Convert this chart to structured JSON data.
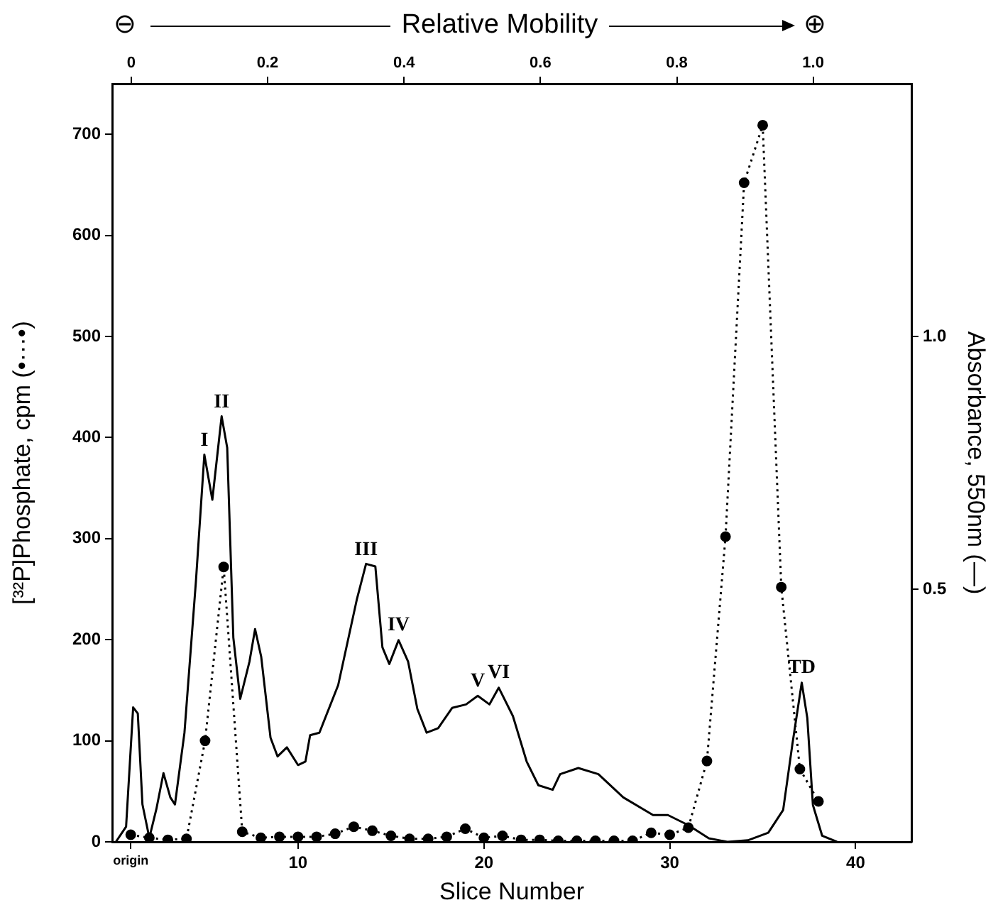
{
  "chart_data": {
    "type": "line",
    "xlabel": "Slice Number",
    "ylabel": "[³²P]Phosphate, cpm (•···•)",
    "y2label": "Absorbance, 550nm (—)",
    "x2label": "Relative Mobility",
    "xlim": [
      0,
      43
    ],
    "xticks": [
      {
        "value": 1,
        "label": "origin"
      },
      10,
      20,
      30,
      40
    ],
    "x2lim": [
      -0.028,
      1.144
    ],
    "x2ticks": [
      0,
      0.2,
      0.4,
      0.6,
      0.8,
      {
        "value": 1,
        "label": "1.0"
      }
    ],
    "ylim": [
      0,
      750
    ],
    "yticks": [
      0,
      100,
      200,
      300,
      400,
      500,
      600,
      700
    ],
    "y2lim": [
      0,
      1.5
    ],
    "y2ticks": [
      0.5,
      {
        "value": 1,
        "label": "1.0"
      }
    ],
    "grid": false,
    "legend": false,
    "series": [
      {
        "color": "#000000",
        "marker": "circle",
        "line_style": "dotted",
        "x": [
          1,
          2,
          3,
          4,
          5,
          6,
          7,
          8,
          9,
          10,
          11,
          12,
          13,
          14,
          15,
          16,
          17,
          18,
          19,
          20,
          21,
          22,
          23,
          24,
          25,
          26,
          27,
          28,
          29,
          30,
          31,
          32,
          33,
          34,
          35,
          36,
          37,
          38
        ],
        "values": [
          7,
          4,
          2,
          3,
          100,
          272,
          10,
          4,
          5,
          5,
          5,
          8,
          15,
          11,
          6,
          3,
          3,
          5,
          13,
          4,
          6,
          2,
          2,
          1,
          1,
          1,
          1,
          1,
          9,
          7,
          14,
          80,
          302,
          652,
          709,
          252,
          72,
          40
        ]
      },
      {
        "axis": "y2",
        "color": "#000000",
        "marker": "none",
        "line_style": "solid",
        "x": [
          0.2,
          0.75,
          1.13,
          1.38,
          1.63,
          2.0,
          2.38,
          2.76,
          3.13,
          3.38,
          3.89,
          4.51,
          4.96,
          5.39,
          5.89,
          6.19,
          6.52,
          6.89,
          7.39,
          7.69,
          8.02,
          8.52,
          8.9,
          9.4,
          10.0,
          10.4,
          10.65,
          11.15,
          12.16,
          13.16,
          13.66,
          14.16,
          14.54,
          14.91,
          15.41,
          15.92,
          16.42,
          16.92,
          17.54,
          18.29,
          19.04,
          19.67,
          20.3,
          20.8,
          21.56,
          22.3,
          22.93,
          23.7,
          24.1,
          25.08,
          26.16,
          27.5,
          29.1,
          29.9,
          31.0,
          32.1,
          33.1,
          34.2,
          35.3,
          36.1,
          36.6,
          37.1,
          37.4,
          37.7,
          38.2,
          39.0
        ],
        "values": [
          0,
          0.03,
          0.266,
          0.254,
          0.074,
          0.008,
          0.065,
          0.136,
          0.088,
          0.074,
          0.216,
          0.517,
          0.766,
          0.677,
          0.842,
          0.78,
          0.404,
          0.283,
          0.357,
          0.421,
          0.366,
          0.206,
          0.169,
          0.187,
          0.152,
          0.159,
          0.211,
          0.216,
          0.31,
          0.479,
          0.55,
          0.545,
          0.385,
          0.352,
          0.399,
          0.357,
          0.263,
          0.216,
          0.225,
          0.265,
          0.272,
          0.289,
          0.272,
          0.305,
          0.249,
          0.159,
          0.112,
          0.103,
          0.134,
          0.146,
          0.134,
          0.088,
          0.053,
          0.053,
          0.033,
          0.007,
          0,
          0.003,
          0.018,
          0.063,
          0.194,
          0.315,
          0.245,
          0.073,
          0.012,
          0
        ]
      }
    ],
    "annotations": [
      "⊖",
      "⊕",
      {
        "text": "I",
        "x": 4.96,
        "y": 383
      },
      {
        "text": "II",
        "x": 5.89,
        "y": 421
      },
      {
        "text": "III",
        "x": 13.66,
        "y": 275
      },
      {
        "text": "IV",
        "x": 15.41,
        "y": 200
      },
      {
        "text": "V",
        "x": 19.67,
        "y": 145
      },
      {
        "text": "VI",
        "x": 20.8,
        "y": 153
      },
      {
        "text": "TD",
        "x": 37.1,
        "y": 158
      }
    ]
  }
}
